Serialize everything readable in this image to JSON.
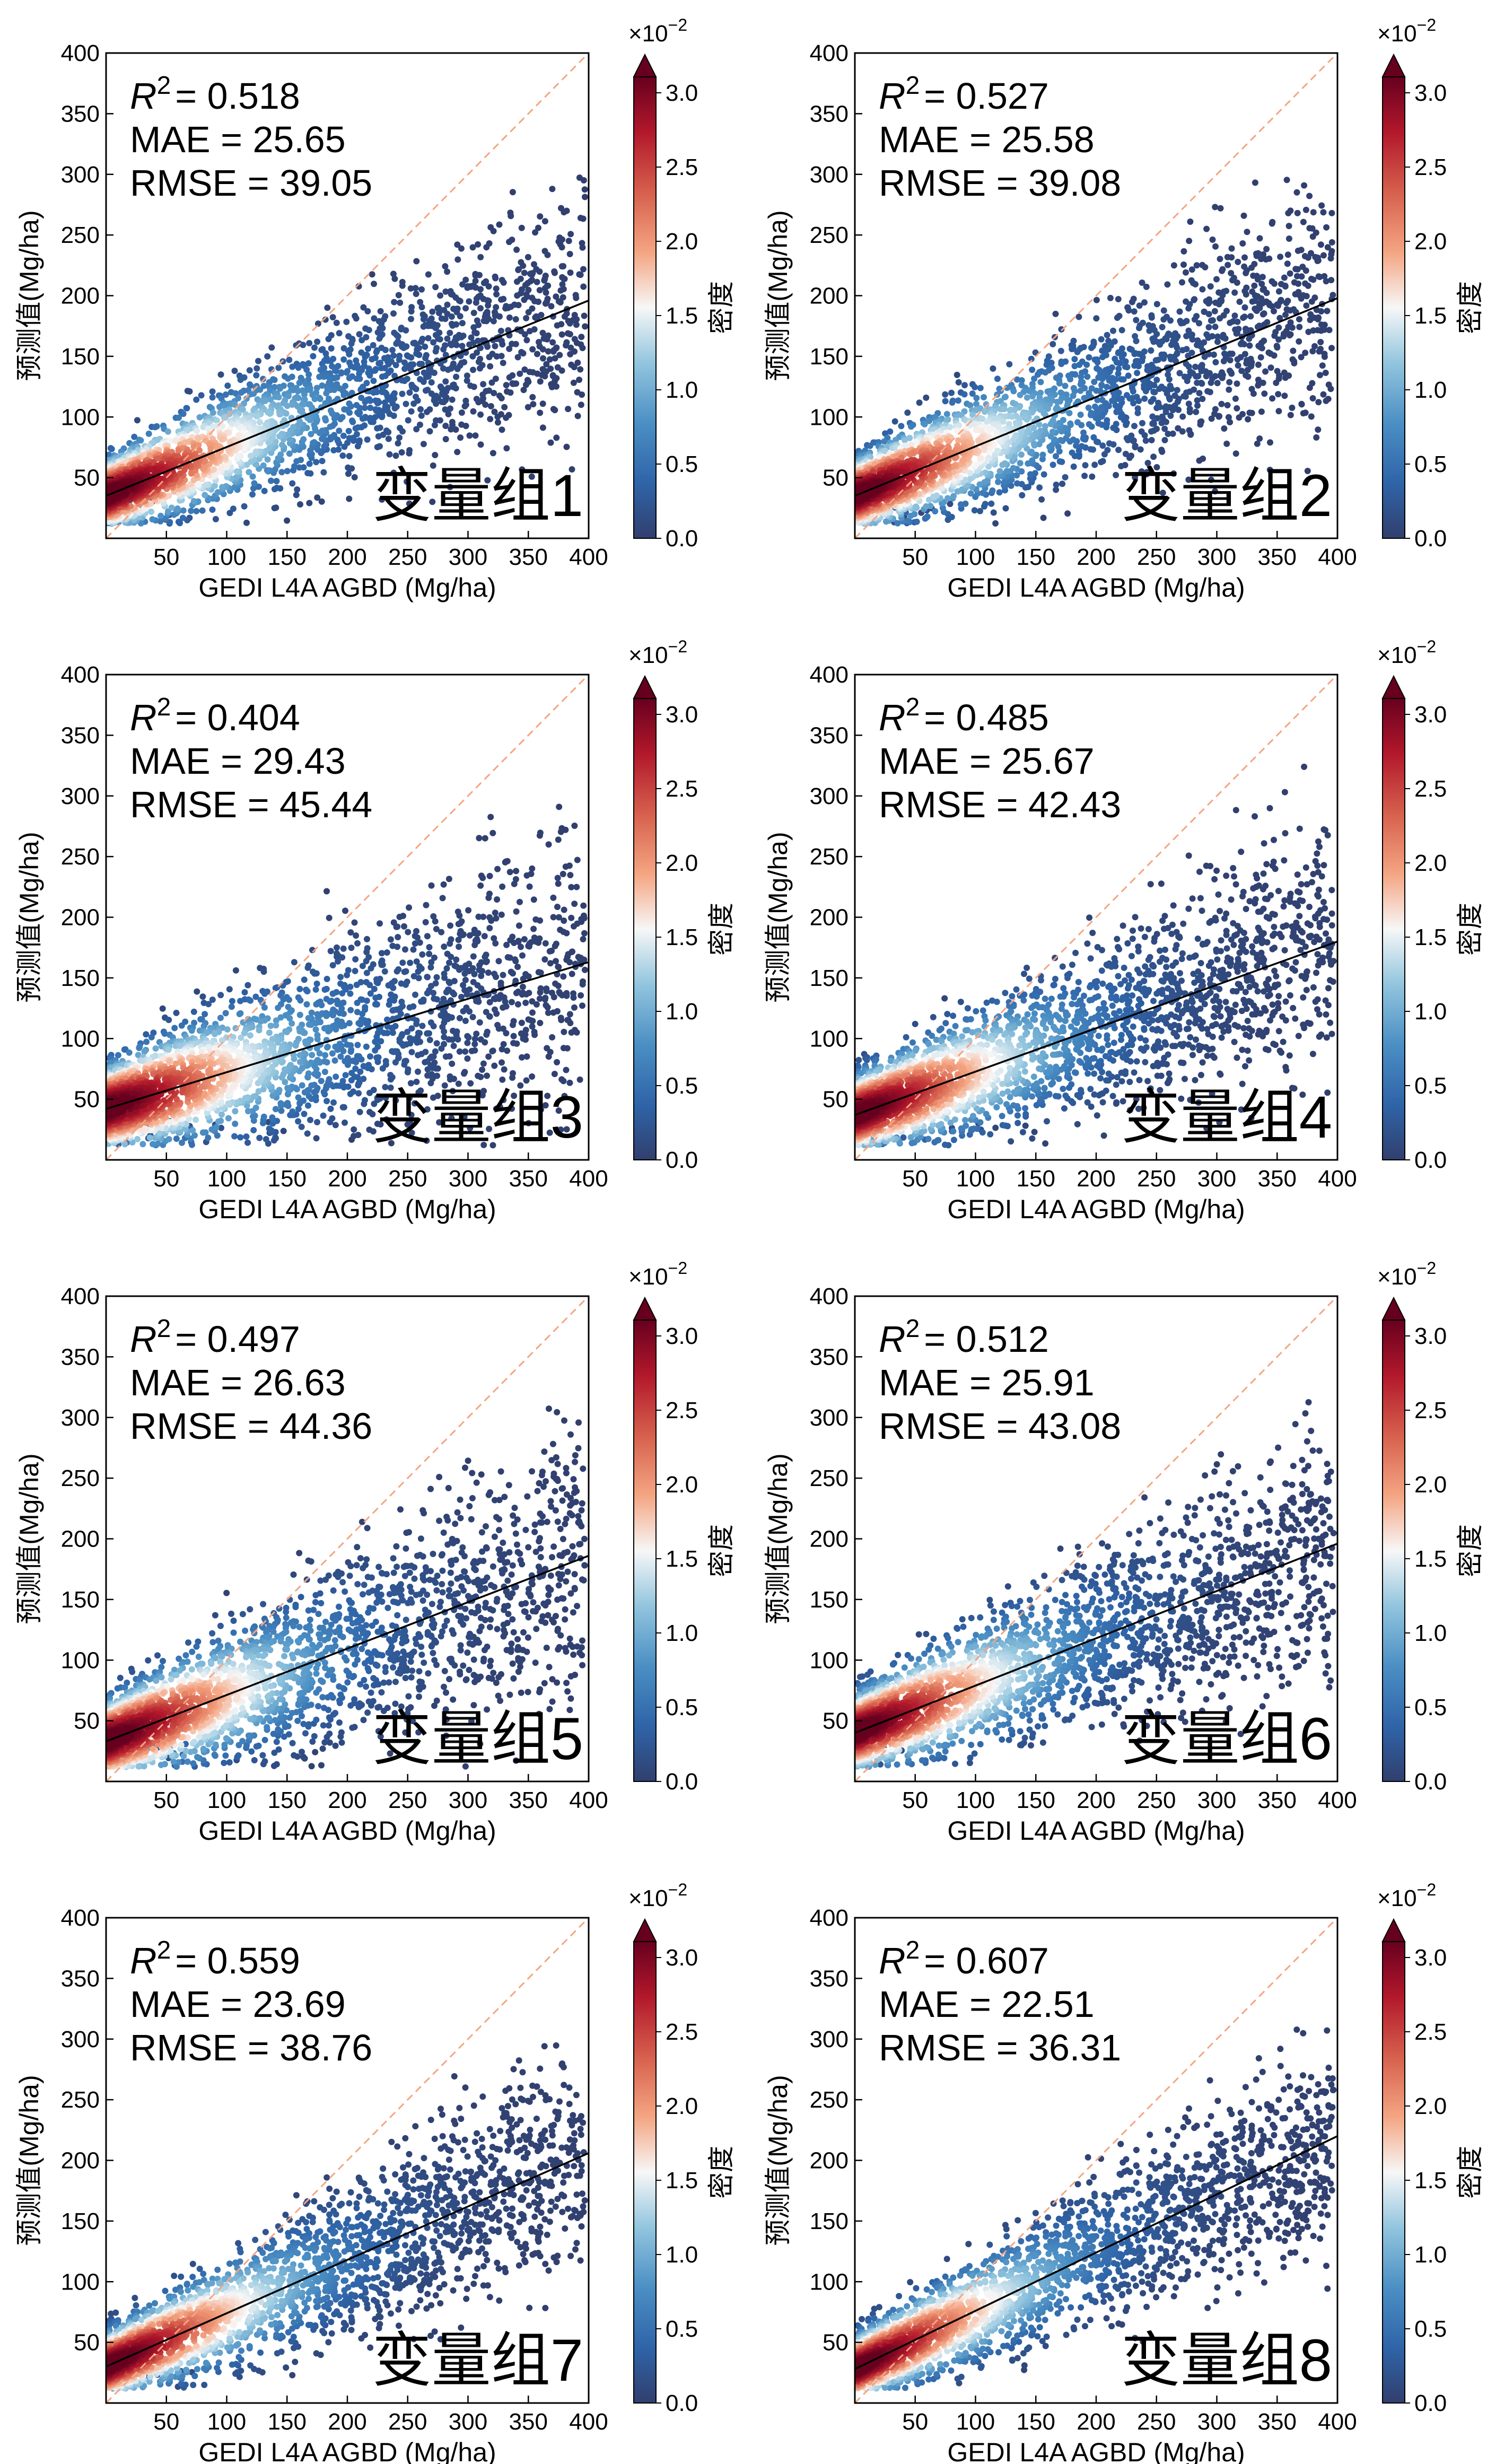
{
  "chart_data": [
    {
      "type": "scatter",
      "panel_label": "变量组1",
      "stats": {
        "r2_label": "R",
        "r2_sup": "2",
        "r2": "= 0.518",
        "mae": "MAE = 25.65",
        "rmse": "RMSE = 39.05"
      },
      "xlabel": "GEDI  L4A  AGBD (Mg/ha)",
      "ylabel": "预测值(Mg/ha)",
      "xlim": [
        0,
        400
      ],
      "ylim": [
        0,
        400
      ],
      "xticks": [
        "50",
        "100",
        "150",
        "200",
        "250",
        "300",
        "350",
        "400"
      ],
      "yticks": [
        "50",
        "100",
        "150",
        "200",
        "250",
        "300",
        "350",
        "400"
      ],
      "fit_line": {
        "x": [
          0,
          400
        ],
        "y": [
          35,
          196
        ]
      },
      "identity_line": {
        "x": [
          0,
          400
        ],
        "y": [
          0,
          400
        ]
      },
      "spread": 28,
      "seed": 11,
      "colorbar": {
        "label": "密度",
        "ticks": [
          "0.0",
          "0.5",
          "1.0",
          "1.5",
          "2.0",
          "2.5",
          "3.0"
        ],
        "range": [
          0,
          3.0
        ],
        "multiplier_base": "×10",
        "multiplier_exp": "−2",
        "cmap": "RdBu_r"
      },
      "grid": false
    },
    {
      "type": "scatter",
      "panel_label": "变量组2",
      "stats": {
        "r2_label": "R",
        "r2_sup": "2",
        "r2": "= 0.527",
        "mae": "MAE = 25.58",
        "rmse": "RMSE = 39.08"
      },
      "xlabel": "GEDI  L4A  AGBD (Mg/ha)",
      "ylabel": "预测值(Mg/ha)",
      "xlim": [
        0,
        400
      ],
      "ylim": [
        0,
        400
      ],
      "xticks": [
        "50",
        "100",
        "150",
        "200",
        "250",
        "300",
        "350",
        "400"
      ],
      "yticks": [
        "50",
        "100",
        "150",
        "200",
        "250",
        "300",
        "350",
        "400"
      ],
      "fit_line": {
        "x": [
          0,
          400
        ],
        "y": [
          35,
          198
        ]
      },
      "identity_line": {
        "x": [
          0,
          400
        ],
        "y": [
          0,
          400
        ]
      },
      "spread": 28,
      "seed": 22,
      "colorbar": {
        "label": "密度",
        "ticks": [
          "0.0",
          "0.5",
          "1.0",
          "1.5",
          "2.0",
          "2.5",
          "3.0"
        ],
        "range": [
          0,
          3.0
        ],
        "multiplier_base": "×10",
        "multiplier_exp": "−2",
        "cmap": "RdBu_r"
      },
      "grid": false
    },
    {
      "type": "scatter",
      "panel_label": "变量组3",
      "stats": {
        "r2_label": "R",
        "r2_sup": "2",
        "r2": "= 0.404",
        "mae": "MAE = 29.43",
        "rmse": "RMSE = 45.44"
      },
      "xlabel": "GEDI  L4A  AGBD (Mg/ha)",
      "ylabel": "预测值(Mg/ha)",
      "xlim": [
        0,
        400
      ],
      "ylim": [
        0,
        400
      ],
      "xticks": [
        "50",
        "100",
        "150",
        "200",
        "250",
        "300",
        "350",
        "400"
      ],
      "yticks": [
        "50",
        "100",
        "150",
        "200",
        "250",
        "300",
        "350",
        "400"
      ],
      "fit_line": {
        "x": [
          0,
          400
        ],
        "y": [
          42,
          163
        ]
      },
      "identity_line": {
        "x": [
          0,
          400
        ],
        "y": [
          0,
          400
        ]
      },
      "spread": 33,
      "seed": 33,
      "colorbar": {
        "label": "密度",
        "ticks": [
          "0.0",
          "0.5",
          "1.0",
          "1.5",
          "2.0",
          "2.5",
          "3.0"
        ],
        "range": [
          0,
          3.0
        ],
        "multiplier_base": "×10",
        "multiplier_exp": "−2",
        "cmap": "RdBu_r"
      },
      "grid": false
    },
    {
      "type": "scatter",
      "panel_label": "变量组4",
      "stats": {
        "r2_label": "R",
        "r2_sup": "2",
        "r2": "= 0.485",
        "mae": "MAE = 25.67",
        "rmse": "RMSE = 42.43"
      },
      "xlabel": "GEDI  L4A  AGBD (Mg/ha)",
      "ylabel": "预测值(Mg/ha)",
      "xlim": [
        0,
        400
      ],
      "ylim": [
        0,
        400
      ],
      "xticks": [
        "50",
        "100",
        "150",
        "200",
        "250",
        "300",
        "350",
        "400"
      ],
      "yticks": [
        "50",
        "100",
        "150",
        "200",
        "250",
        "300",
        "350",
        "400"
      ],
      "fit_line": {
        "x": [
          0,
          400
        ],
        "y": [
          37,
          180
        ]
      },
      "identity_line": {
        "x": [
          0,
          400
        ],
        "y": [
          0,
          400
        ]
      },
      "spread": 30,
      "seed": 44,
      "colorbar": {
        "label": "密度",
        "ticks": [
          "0.0",
          "0.5",
          "1.0",
          "1.5",
          "2.0",
          "2.5",
          "3.0"
        ],
        "range": [
          0,
          3.0
        ],
        "multiplier_base": "×10",
        "multiplier_exp": "−2",
        "cmap": "RdBu_r"
      },
      "grid": false
    },
    {
      "type": "scatter",
      "panel_label": "变量组5",
      "stats": {
        "r2_label": "R",
        "r2_sup": "2",
        "r2": "= 0.497",
        "mae": "MAE = 26.63",
        "rmse": "RMSE = 44.36"
      },
      "xlabel": "GEDI  L4A  AGBD (Mg/ha)",
      "ylabel": "预测值(Mg/ha)",
      "xlim": [
        0,
        400
      ],
      "ylim": [
        0,
        400
      ],
      "xticks": [
        "50",
        "100",
        "150",
        "200",
        "250",
        "300",
        "350",
        "400"
      ],
      "yticks": [
        "50",
        "100",
        "150",
        "200",
        "250",
        "300",
        "350",
        "400"
      ],
      "fit_line": {
        "x": [
          0,
          400
        ],
        "y": [
          33,
          186
        ]
      },
      "identity_line": {
        "x": [
          0,
          400
        ],
        "y": [
          0,
          400
        ]
      },
      "spread": 31,
      "seed": 55,
      "colorbar": {
        "label": "密度",
        "ticks": [
          "0.0",
          "0.5",
          "1.0",
          "1.5",
          "2.0",
          "2.5",
          "3.0"
        ],
        "range": [
          0,
          3.0
        ],
        "multiplier_base": "×10",
        "multiplier_exp": "−2",
        "cmap": "RdBu_r"
      },
      "grid": false
    },
    {
      "type": "scatter",
      "panel_label": "变量组6",
      "stats": {
        "r2_label": "R",
        "r2_sup": "2",
        "r2": "= 0.512",
        "mae": "MAE = 25.91",
        "rmse": "RMSE = 43.08"
      },
      "xlabel": "GEDI  L4A  AGBD (Mg/ha)",
      "ylabel": "预测值(Mg/ha)",
      "xlim": [
        0,
        400
      ],
      "ylim": [
        0,
        400
      ],
      "xticks": [
        "50",
        "100",
        "150",
        "200",
        "250",
        "300",
        "350",
        "400"
      ],
      "yticks": [
        "50",
        "100",
        "150",
        "200",
        "250",
        "300",
        "350",
        "400"
      ],
      "fit_line": {
        "x": [
          0,
          400
        ],
        "y": [
          40,
          196
        ]
      },
      "identity_line": {
        "x": [
          0,
          400
        ],
        "y": [
          0,
          400
        ]
      },
      "spread": 30,
      "seed": 66,
      "colorbar": {
        "label": "密度",
        "ticks": [
          "0.0",
          "0.5",
          "1.0",
          "1.5",
          "2.0",
          "2.5",
          "3.0"
        ],
        "range": [
          0,
          3.0
        ],
        "multiplier_base": "×10",
        "multiplier_exp": "−2",
        "cmap": "RdBu_r"
      },
      "grid": false
    },
    {
      "type": "scatter",
      "panel_label": "变量组7",
      "stats": {
        "r2_label": "R",
        "r2_sup": "2",
        "r2": "= 0.559",
        "mae": "MAE = 23.69",
        "rmse": "RMSE = 38.76"
      },
      "xlabel": "GEDI  L4A  AGBD (Mg/ha)",
      "ylabel": "预测值(Mg/ha)",
      "xlim": [
        0,
        400
      ],
      "ylim": [
        0,
        400
      ],
      "xticks": [
        "50",
        "100",
        "150",
        "200",
        "250",
        "300",
        "350",
        "400"
      ],
      "yticks": [
        "50",
        "100",
        "150",
        "200",
        "250",
        "300",
        "350",
        "400"
      ],
      "fit_line": {
        "x": [
          0,
          400
        ],
        "y": [
          30,
          206
        ]
      },
      "identity_line": {
        "x": [
          0,
          400
        ],
        "y": [
          0,
          400
        ]
      },
      "spread": 26,
      "seed": 77,
      "colorbar": {
        "label": "密度",
        "ticks": [
          "0.0",
          "0.5",
          "1.0",
          "1.5",
          "2.0",
          "2.5",
          "3.0"
        ],
        "range": [
          0,
          3.0
        ],
        "multiplier_base": "×10",
        "multiplier_exp": "−2",
        "cmap": "RdBu_r"
      },
      "grid": false
    },
    {
      "type": "scatter",
      "panel_label": "变量组8",
      "stats": {
        "r2_label": "R",
        "r2_sup": "2",
        "r2": "= 0.607",
        "mae": "MAE = 22.51",
        "rmse": "RMSE = 36.31"
      },
      "xlabel": "GEDI  L4A  AGBD (Mg/ha)",
      "ylabel": "预测值(Mg/ha)",
      "xlim": [
        0,
        400
      ],
      "ylim": [
        0,
        400
      ],
      "xticks": [
        "50",
        "100",
        "150",
        "200",
        "250",
        "300",
        "350",
        "400"
      ],
      "yticks": [
        "50",
        "100",
        "150",
        "200",
        "250",
        "300",
        "350",
        "400"
      ],
      "fit_line": {
        "x": [
          0,
          400
        ],
        "y": [
          28,
          220
        ]
      },
      "identity_line": {
        "x": [
          0,
          400
        ],
        "y": [
          0,
          400
        ]
      },
      "spread": 25,
      "seed": 88,
      "colorbar": {
        "label": "密度",
        "ticks": [
          "0.0",
          "0.5",
          "1.0",
          "1.5",
          "2.0",
          "2.5",
          "3.0"
        ],
        "range": [
          0,
          3.0
        ],
        "multiplier_base": "×10",
        "multiplier_exp": "−2",
        "cmap": "RdBu_r"
      },
      "grid": false
    }
  ],
  "colors": {
    "identity_line": "#f4a582",
    "fit_line": "#000000",
    "cmap_stops": [
      "#313f6e",
      "#2f64a8",
      "#4b8fc4",
      "#92c5de",
      "#f7f7f7",
      "#f4a582",
      "#d6604d",
      "#b2182b",
      "#67001f"
    ]
  }
}
